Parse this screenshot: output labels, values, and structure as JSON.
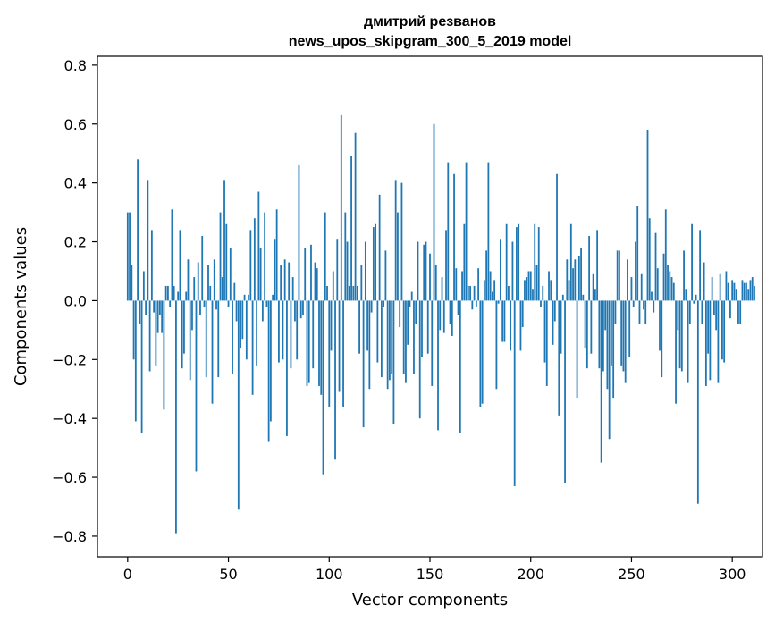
{
  "chart_data": {
    "type": "bar",
    "title_line1": "дмитрий резванов",
    "title_line2": "news_upos_skipgram_300_5_2019 model",
    "xlabel": "Vector components",
    "ylabel": "Components values",
    "xlim": [
      -15,
      315
    ],
    "ylim": [
      -0.87,
      0.83
    ],
    "xticks": [
      0,
      50,
      100,
      150,
      200,
      250,
      300
    ],
    "xtick_labels": [
      "0",
      "50",
      "100",
      "150",
      "200",
      "250",
      "300"
    ],
    "yticks": [
      0.8,
      0.6,
      0.4,
      0.2,
      0.0,
      -0.2,
      -0.4,
      -0.6,
      -0.8
    ],
    "ytick_labels": [
      "0.8",
      "0.6",
      "0.4",
      "0.2",
      "0.0",
      "−0.2",
      "−0.4",
      "−0.6",
      "−0.8"
    ],
    "bar_color": "#1f77b4",
    "values": [
      0.3,
      0.3,
      0.12,
      -0.2,
      -0.41,
      0.48,
      -0.08,
      -0.45,
      0.1,
      -0.05,
      0.41,
      -0.24,
      0.24,
      -0.04,
      -0.22,
      -0.11,
      -0.05,
      -0.11,
      -0.37,
      0.05,
      0.05,
      -0.02,
      0.31,
      0.05,
      -0.79,
      0.03,
      0.24,
      -0.23,
      -0.18,
      0.03,
      0.14,
      -0.27,
      -0.1,
      0.08,
      -0.58,
      0.13,
      -0.05,
      0.22,
      -0.02,
      -0.26,
      0.12,
      0.05,
      -0.35,
      0.14,
      -0.03,
      -0.26,
      0.3,
      0.08,
      0.41,
      0.26,
      -0.02,
      0.18,
      -0.25,
      0.06,
      -0.07,
      -0.71,
      -0.16,
      -0.13,
      0.02,
      -0.2,
      0.02,
      0.24,
      -0.32,
      0.28,
      -0.22,
      0.37,
      0.18,
      -0.07,
      0.3,
      -0.02,
      -0.48,
      -0.41,
      0.02,
      0.21,
      0.31,
      -0.21,
      0.12,
      -0.2,
      0.14,
      -0.46,
      0.13,
      -0.23,
      0.08,
      -0.07,
      -0.2,
      0.46,
      -0.06,
      -0.05,
      0.18,
      -0.29,
      -0.28,
      0.19,
      -0.23,
      0.13,
      0.11,
      -0.29,
      -0.32,
      -0.59,
      0.3,
      0.05,
      -0.36,
      -0.17,
      0.1,
      -0.54,
      0.21,
      -0.31,
      0.63,
      -0.36,
      0.3,
      0.2,
      0.05,
      0.49,
      0.05,
      0.57,
      0.05,
      -0.18,
      0.12,
      -0.43,
      0.2,
      -0.17,
      -0.3,
      -0.04,
      0.25,
      0.26,
      -0.21,
      0.36,
      -0.26,
      -0.02,
      0.17,
      -0.3,
      -0.27,
      -0.25,
      -0.42,
      0.41,
      0.3,
      -0.09,
      0.4,
      -0.25,
      -0.28,
      -0.15,
      -0.02,
      0.03,
      -0.25,
      -0.08,
      0.2,
      -0.4,
      -0.19,
      0.19,
      0.2,
      -0.18,
      0.16,
      -0.29,
      0.6,
      0.12,
      -0.44,
      -0.1,
      0.08,
      -0.11,
      0.24,
      0.47,
      -0.08,
      -0.12,
      0.43,
      0.11,
      -0.05,
      -0.45,
      0.1,
      0.26,
      0.47,
      0.05,
      0.05,
      -0.03,
      0.05,
      -0.02,
      0.11,
      -0.36,
      -0.35,
      0.07,
      0.17,
      0.47,
      0.1,
      0.03,
      0.07,
      -0.3,
      -0.01,
      0.21,
      -0.14,
      -0.14,
      0.26,
      0.05,
      -0.17,
      0.2,
      -0.63,
      0.25,
      0.26,
      -0.17,
      -0.09,
      0.07,
      0.08,
      0.1,
      0.1,
      0.04,
      0.26,
      0.12,
      0.25,
      -0.02,
      0.05,
      -0.21,
      -0.29,
      0.1,
      0.07,
      -0.15,
      -0.07,
      0.43,
      -0.39,
      -0.18,
      0.02,
      -0.62,
      0.14,
      0.07,
      0.26,
      0.11,
      0.14,
      -0.33,
      0.15,
      0.18,
      0.02,
      -0.16,
      -0.23,
      0.22,
      -0.18,
      0.09,
      0.04,
      0.24,
      -0.23,
      -0.55,
      -0.24,
      -0.1,
      -0.3,
      -0.47,
      -0.22,
      -0.33,
      -0.08,
      0.17,
      0.17,
      -0.22,
      -0.24,
      -0.28,
      0.14,
      -0.19,
      0.08,
      -0.02,
      0.2,
      0.32,
      -0.08,
      0.09,
      -0.03,
      -0.08,
      0.58,
      0.28,
      0.03,
      -0.04,
      0.23,
      0.11,
      -0.17,
      -0.26,
      0.16,
      0.31,
      0.12,
      0.1,
      0.08,
      0.06,
      -0.35,
      -0.1,
      -0.23,
      -0.24,
      0.17,
      0.04,
      -0.28,
      -0.08,
      0.26,
      -0.01,
      0.02,
      -0.69,
      0.24,
      -0.08,
      0.13,
      -0.29,
      -0.18,
      -0.27,
      0.08,
      -0.05,
      -0.1,
      -0.28,
      0.09,
      -0.2,
      -0.21,
      0.1,
      0.06,
      -0.06,
      0.07,
      0.06,
      0.04,
      -0.08,
      -0.08,
      0.07,
      0.06,
      0.06,
      0.04,
      0.07,
      0.08,
      0.05
    ]
  }
}
